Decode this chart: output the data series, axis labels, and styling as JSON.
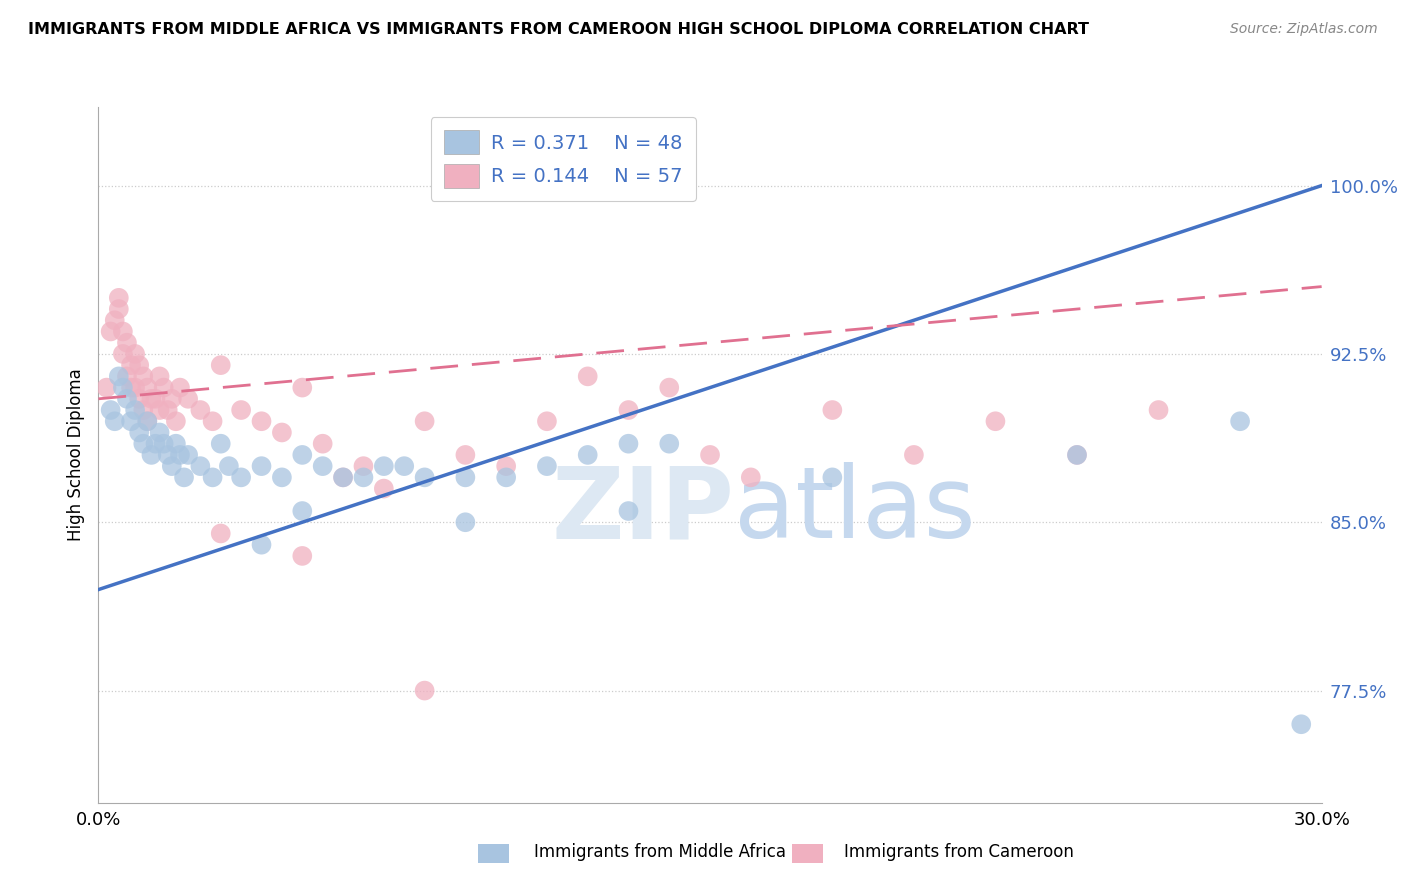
{
  "title": "IMMIGRANTS FROM MIDDLE AFRICA VS IMMIGRANTS FROM CAMEROON HIGH SCHOOL DIPLOMA CORRELATION CHART",
  "source": "Source: ZipAtlas.com",
  "ylabel": "High School Diploma",
  "xlim": [
    0.0,
    0.3
  ],
  "ylim": [
    0.725,
    1.035
  ],
  "yticks": [
    0.775,
    0.85,
    0.925,
    1.0
  ],
  "ytick_labels": [
    "77.5%",
    "85.0%",
    "92.5%",
    "100.0%"
  ],
  "xticks": [
    0.0,
    0.0333,
    0.0667,
    0.1,
    0.1333,
    0.1667,
    0.2,
    0.2333,
    0.2667,
    0.3
  ],
  "xtick_labels_show": [
    "0.0%",
    "30.0%"
  ],
  "legend_r1": "R = 0.371",
  "legend_n1": "N = 48",
  "legend_r2": "R = 0.144",
  "legend_n2": "N = 57",
  "color_blue": "#a8c4e0",
  "color_pink": "#f0b0c0",
  "line_blue": "#4472c4",
  "line_pink": "#e07090",
  "label1": "Immigrants from Middle Africa",
  "label2": "Immigrants from Cameroon",
  "blue_line_x0": 0.0,
  "blue_line_y0": 0.82,
  "blue_line_x1": 0.3,
  "blue_line_y1": 1.0,
  "pink_line_x0": 0.0,
  "pink_line_y0": 0.905,
  "pink_line_x1": 0.3,
  "pink_line_y1": 0.955,
  "blue_x": [
    0.003,
    0.004,
    0.005,
    0.006,
    0.007,
    0.008,
    0.009,
    0.01,
    0.011,
    0.012,
    0.013,
    0.014,
    0.015,
    0.016,
    0.017,
    0.018,
    0.019,
    0.02,
    0.021,
    0.022,
    0.025,
    0.028,
    0.03,
    0.032,
    0.035,
    0.04,
    0.045,
    0.05,
    0.055,
    0.06,
    0.065,
    0.07,
    0.075,
    0.08,
    0.09,
    0.1,
    0.11,
    0.12,
    0.13,
    0.14,
    0.04,
    0.05,
    0.09,
    0.13,
    0.18,
    0.24,
    0.28,
    0.295
  ],
  "blue_y": [
    0.9,
    0.895,
    0.915,
    0.91,
    0.905,
    0.895,
    0.9,
    0.89,
    0.885,
    0.895,
    0.88,
    0.885,
    0.89,
    0.885,
    0.88,
    0.875,
    0.885,
    0.88,
    0.87,
    0.88,
    0.875,
    0.87,
    0.885,
    0.875,
    0.87,
    0.875,
    0.87,
    0.88,
    0.875,
    0.87,
    0.87,
    0.875,
    0.875,
    0.87,
    0.87,
    0.87,
    0.875,
    0.88,
    0.885,
    0.885,
    0.84,
    0.855,
    0.85,
    0.855,
    0.87,
    0.88,
    0.895,
    0.76
  ],
  "pink_x": [
    0.002,
    0.003,
    0.004,
    0.005,
    0.005,
    0.006,
    0.006,
    0.007,
    0.007,
    0.008,
    0.008,
    0.009,
    0.009,
    0.01,
    0.01,
    0.011,
    0.011,
    0.012,
    0.012,
    0.013,
    0.014,
    0.015,
    0.015,
    0.016,
    0.017,
    0.018,
    0.019,
    0.02,
    0.022,
    0.025,
    0.028,
    0.03,
    0.035,
    0.04,
    0.045,
    0.05,
    0.055,
    0.06,
    0.065,
    0.07,
    0.08,
    0.09,
    0.1,
    0.11,
    0.12,
    0.13,
    0.14,
    0.15,
    0.16,
    0.18,
    0.2,
    0.22,
    0.24,
    0.26,
    0.03,
    0.05,
    0.08
  ],
  "pink_y": [
    0.91,
    0.935,
    0.94,
    0.945,
    0.95,
    0.935,
    0.925,
    0.93,
    0.915,
    0.92,
    0.91,
    0.925,
    0.91,
    0.92,
    0.905,
    0.915,
    0.9,
    0.91,
    0.895,
    0.905,
    0.905,
    0.915,
    0.9,
    0.91,
    0.9,
    0.905,
    0.895,
    0.91,
    0.905,
    0.9,
    0.895,
    0.92,
    0.9,
    0.895,
    0.89,
    0.91,
    0.885,
    0.87,
    0.875,
    0.865,
    0.895,
    0.88,
    0.875,
    0.895,
    0.915,
    0.9,
    0.91,
    0.88,
    0.87,
    0.9,
    0.88,
    0.895,
    0.88,
    0.9,
    0.845,
    0.835,
    0.775
  ]
}
